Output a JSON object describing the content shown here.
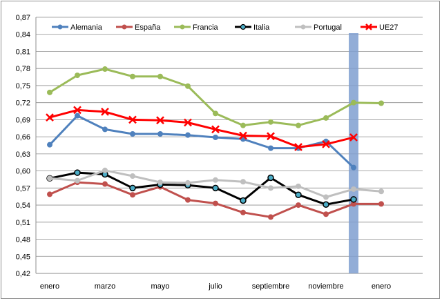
{
  "chart_data": {
    "type": "line",
    "title": "",
    "xlabel": "",
    "ylabel": "",
    "ylim": [
      0.42,
      0.87
    ],
    "yticks": [
      "0,42",
      "0,45",
      "0,48",
      "0,51",
      "0,54",
      "0,57",
      "0,60",
      "0,63",
      "0,66",
      "0,69",
      "0,72",
      "0,75",
      "0,78",
      "0,81",
      "0,84",
      "0,87"
    ],
    "xticks": [
      "enero",
      "marzo",
      "mayo",
      "julio",
      "septiembre",
      "noviembre",
      "enero"
    ],
    "n_points": 14,
    "highlight_index": 11,
    "grid": true,
    "legend_position": "top",
    "series": [
      {
        "name": "Alemania",
        "color": "#4f81bd",
        "marker": "circle",
        "values": [
          0.646,
          0.697,
          0.673,
          0.665,
          0.665,
          0.663,
          0.659,
          0.656,
          0.64,
          0.64,
          0.652,
          0.606,
          null,
          null
        ]
      },
      {
        "name": "España",
        "color": "#c0504d",
        "marker": "circle",
        "values": [
          0.559,
          0.58,
          0.577,
          0.558,
          0.572,
          0.549,
          0.543,
          0.527,
          0.519,
          0.54,
          0.524,
          0.542,
          0.542,
          null
        ]
      },
      {
        "name": "Francia",
        "color": "#9bbb59",
        "marker": "circle",
        "values": [
          0.738,
          0.768,
          0.779,
          0.766,
          0.766,
          0.749,
          0.701,
          0.68,
          0.686,
          0.68,
          0.693,
          0.72,
          0.719,
          null
        ]
      },
      {
        "name": "Italia",
        "color": "#000000",
        "marker": "circle-teal",
        "values": [
          0.587,
          0.597,
          0.594,
          0.57,
          0.576,
          0.575,
          0.57,
          0.548,
          0.588,
          0.558,
          0.541,
          0.55,
          null,
          null
        ]
      },
      {
        "name": "Portugal",
        "color": "#bfbfbf",
        "marker": "circle",
        "values": [
          0.587,
          0.583,
          0.601,
          0.591,
          0.58,
          0.579,
          0.584,
          0.581,
          0.57,
          0.573,
          0.554,
          0.568,
          0.564,
          null
        ]
      },
      {
        "name": "UE27",
        "color": "#ff0000",
        "marker": "x",
        "values": [
          0.694,
          0.707,
          0.704,
          0.69,
          0.689,
          0.685,
          0.673,
          0.662,
          0.661,
          0.642,
          0.647,
          0.659,
          null,
          null
        ]
      }
    ]
  }
}
